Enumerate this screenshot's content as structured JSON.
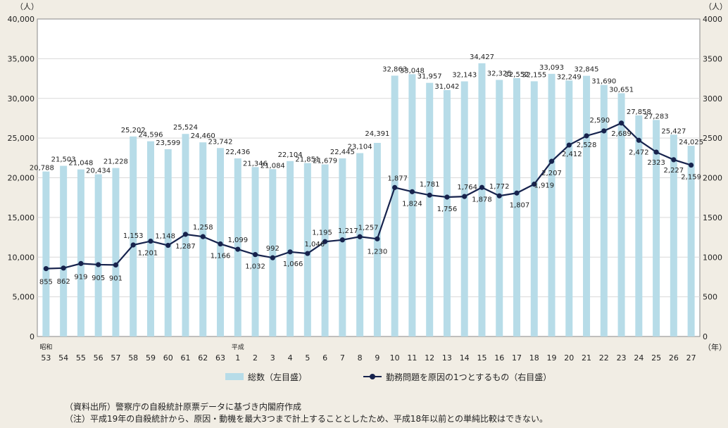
{
  "chart_data": {
    "type": "bar+line",
    "categories": [
      "53",
      "54",
      "55",
      "56",
      "57",
      "58",
      "59",
      "60",
      "61",
      "62",
      "63",
      "1",
      "2",
      "3",
      "4",
      "5",
      "6",
      "7",
      "8",
      "9",
      "10",
      "11",
      "12",
      "13",
      "14",
      "15",
      "16",
      "17",
      "18",
      "19",
      "20",
      "21",
      "22",
      "23",
      "24",
      "25",
      "26",
      "27"
    ],
    "era_labels": [
      {
        "index": 0,
        "text": "昭和"
      },
      {
        "index": 11,
        "text": "平成"
      }
    ],
    "x_unit": "（年）",
    "left_unit": "（人）",
    "right_unit": "（人）",
    "left_axis": {
      "min": 0,
      "max": 40000,
      "ticks": [
        "0",
        "5,000",
        "10,000",
        "15,000",
        "20,000",
        "25,000",
        "30,000",
        "35,000",
        "40,000"
      ]
    },
    "right_axis": {
      "min": 0,
      "max": 4000,
      "ticks": [
        "0",
        "500",
        "1000",
        "1500",
        "2000",
        "2500",
        "3000",
        "3500",
        "4000"
      ]
    },
    "series": [
      {
        "name": "総数（左目盛）",
        "type": "bar",
        "axis": "left",
        "color": "#b7dce8",
        "values": [
          20788,
          21503,
          21048,
          20434,
          21228,
          25202,
          24596,
          23599,
          25524,
          24460,
          23742,
          22436,
          21346,
          21084,
          22104,
          21851,
          21679,
          22445,
          23104,
          24391,
          32863,
          33048,
          31957,
          31042,
          32143,
          34427,
          32325,
          32552,
          32155,
          33093,
          32249,
          32845,
          31690,
          30651,
          27858,
          27283,
          25427,
          24025
        ],
        "labels": [
          "20,788",
          "21,503",
          "21,048",
          "20,434",
          "21,228",
          "25,202",
          "24,596",
          "23,599",
          "25,524",
          "24,460",
          "23,742",
          "22,436",
          "21,346",
          "21,084",
          "22,104",
          "21,851",
          "21,679",
          "22,445",
          "23,104",
          "24,391",
          "32,863",
          "33,048",
          "31,957",
          "31,042",
          "32,143",
          "34,427",
          "32,325",
          "32,552",
          "32,155",
          "33,093",
          "32,249",
          "32,845",
          "31,690",
          "30,651",
          "27,858",
          "27,283",
          "25,427",
          "24,025"
        ]
      },
      {
        "name": "勤務問題を原因の1つとするもの（右目盛）",
        "type": "line",
        "axis": "right",
        "color": "#17234d",
        "values": [
          855,
          862,
          919,
          905,
          901,
          1153,
          1201,
          1148,
          1287,
          1258,
          1166,
          1099,
          1032,
          992,
          1066,
          1046,
          1195,
          1217,
          1257,
          1230,
          1877,
          1824,
          1781,
          1756,
          1764,
          1878,
          1772,
          1807,
          1919,
          2207,
          2412,
          2528,
          2590,
          2689,
          2472,
          2323,
          2227,
          2159
        ],
        "labels": [
          "855",
          "862",
          "919",
          "905",
          "901",
          "1,153",
          "1,201",
          "1,148",
          "1,287",
          "1,258",
          "1,166",
          "1,099",
          "1,032",
          "992",
          "1,066",
          "1,046",
          "1,195",
          "1,217",
          "1,257",
          "1,230",
          "1,877",
          "1,824",
          "1,781",
          "1,756",
          "1,764",
          "1,878",
          "1,772",
          "1,807",
          "1,919",
          "2,207",
          "2,412",
          "2,528",
          "2,590",
          "2,689",
          "2,472",
          "2323",
          "2,227",
          "2,159"
        ]
      }
    ],
    "legend_position": "bottom",
    "grid": true
  },
  "legend": {
    "bar": "総数（左目盛）",
    "line": "勤務問題を原因の1つとするもの（右目盛）"
  },
  "notes": [
    "（資料出所）警察庁の自殺統計原票データに基づき内閣府作成",
    "（注）平成19年の自殺統計から、原因・動機を最大3つまで計上することとしたため、平成18年以前との単純比較はできない。"
  ]
}
